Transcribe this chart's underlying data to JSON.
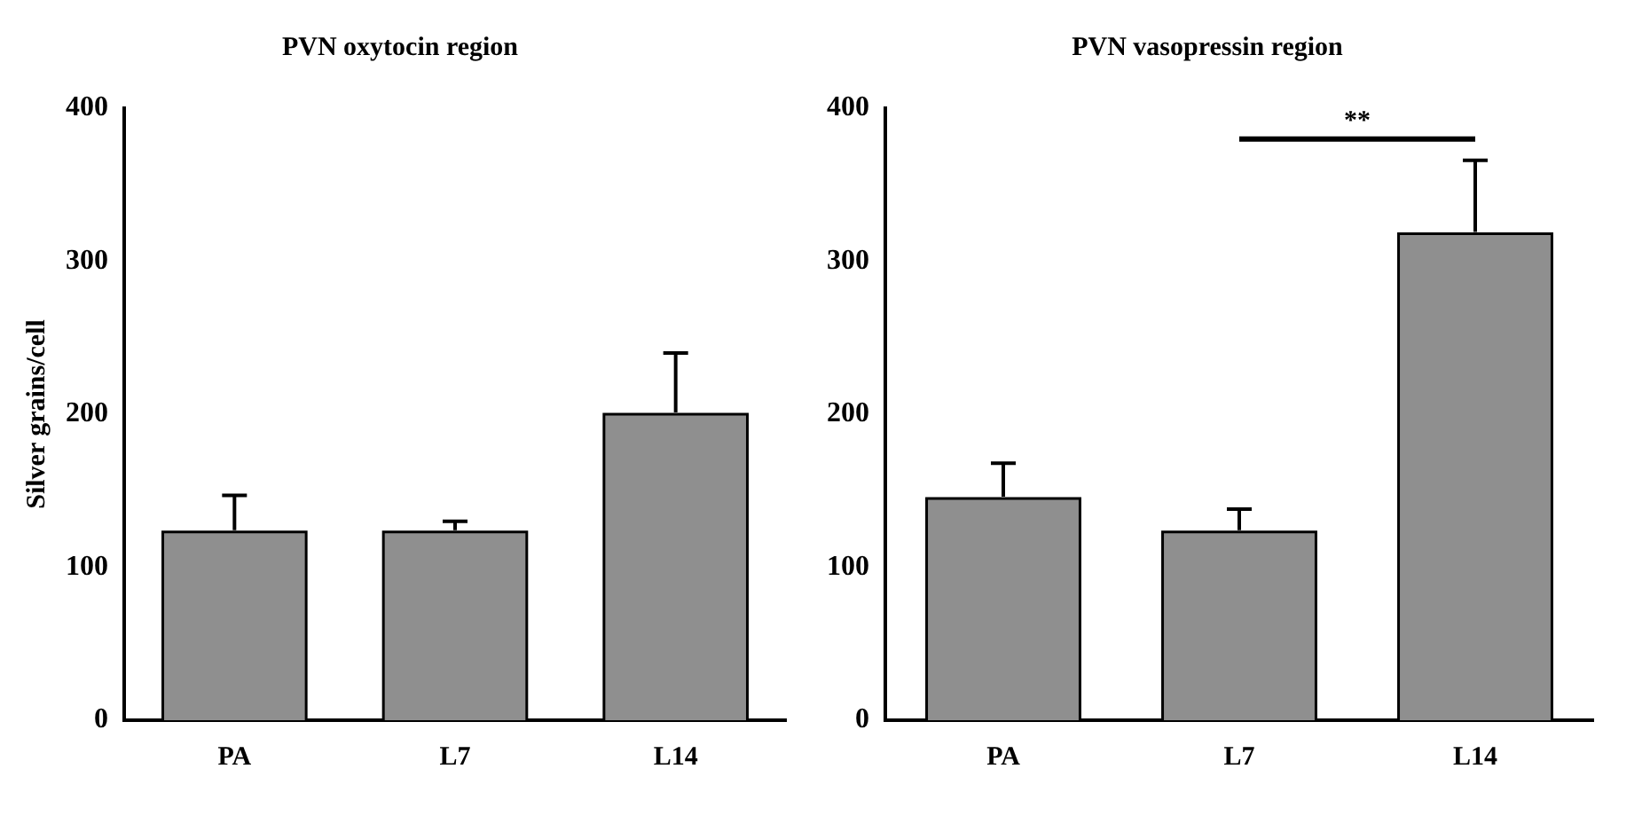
{
  "chart_data": [
    {
      "type": "bar",
      "title": "PVN oxytocin region",
      "ylabel": "Silver grains/cell",
      "categories": [
        "PA",
        "L7",
        "L14"
      ],
      "values": [
        123,
        123,
        200
      ],
      "errors": [
        24,
        7,
        40
      ],
      "color": "#8f8f8f",
      "ylim": [
        0,
        400
      ],
      "yticks": [
        0,
        100,
        200,
        300,
        400
      ],
      "grid": false
    },
    {
      "type": "bar",
      "title": "PVN vasopressin region",
      "categories": [
        "PA",
        "L7",
        "L14"
      ],
      "values": [
        145,
        123,
        318
      ],
      "errors": [
        23,
        15,
        48
      ],
      "color": "#8f8f8f",
      "ylim": [
        0,
        400
      ],
      "yticks": [
        0,
        100,
        200,
        300,
        400
      ],
      "grid": false,
      "annotations": [
        "**"
      ]
    }
  ]
}
